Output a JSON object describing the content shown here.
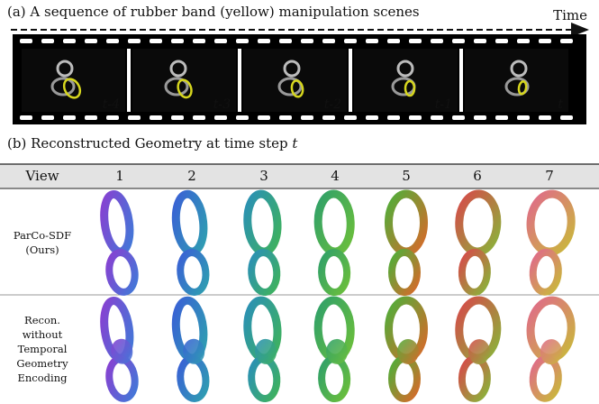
{
  "panel_a": {
    "caption": "(a) A sequence of rubber band (yellow) manipulation scenes",
    "time_label": "Time",
    "frames": [
      "t-4",
      "t-3",
      "t-2",
      "t-1",
      "t"
    ]
  },
  "panel_b": {
    "caption": "(b) Reconstructed Geometry at time step",
    "caption_variable": "t",
    "header": [
      "View",
      "1",
      "2",
      "3",
      "4",
      "5",
      "6",
      "7"
    ],
    "rows": [
      {
        "label": [
          "ParCo-SDF",
          "(Ours)"
        ]
      },
      {
        "label": [
          "Recon.",
          "without",
          "Temporal",
          "Geometry",
          "Encoding"
        ]
      }
    ]
  }
}
